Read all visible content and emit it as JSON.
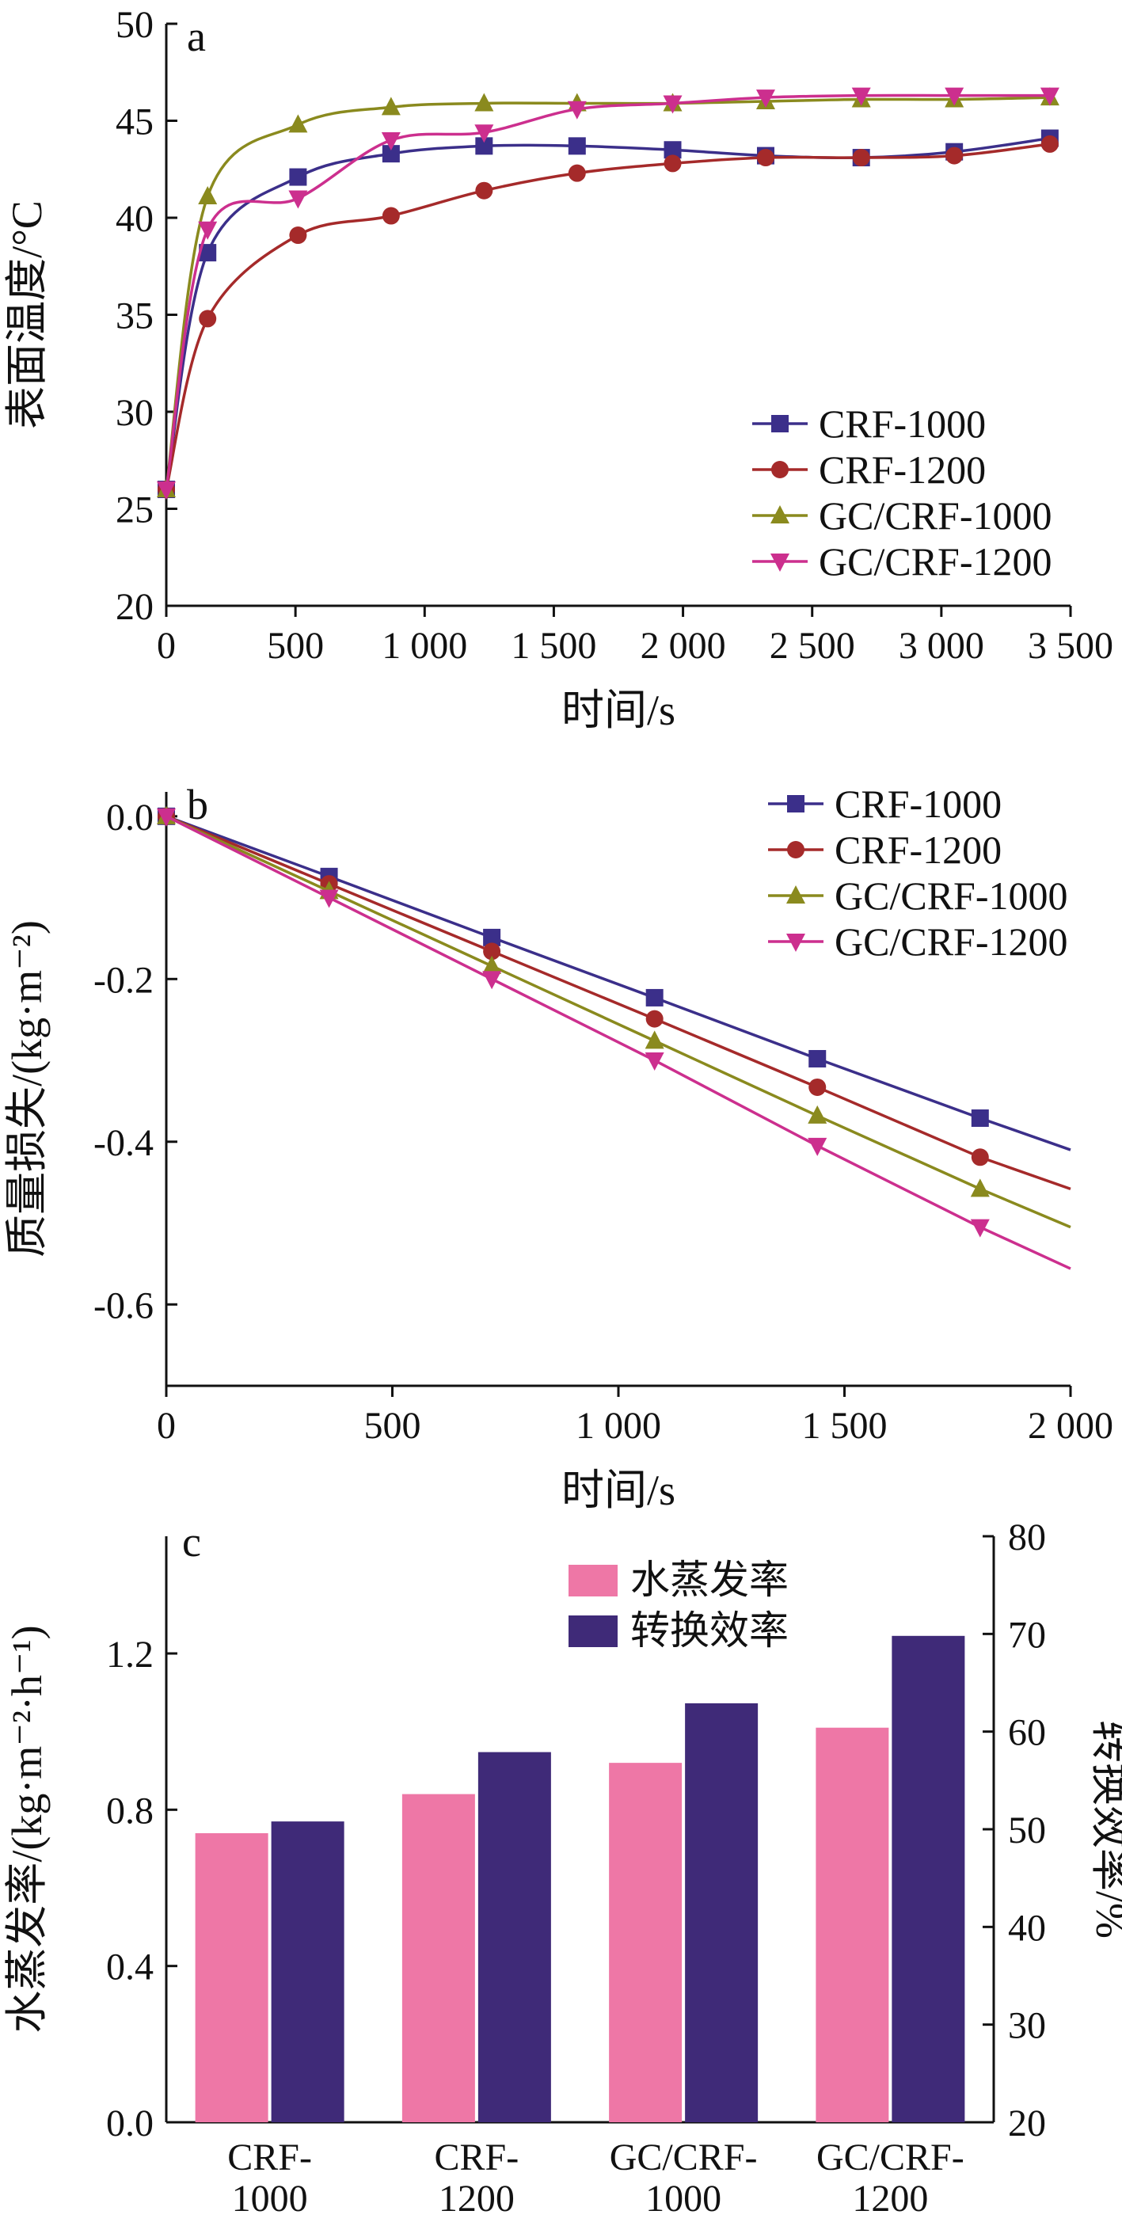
{
  "chart_data": [
    {
      "panel": "a",
      "type": "line",
      "xlabel": "时间/s",
      "ylabel": "表面温度/°C",
      "xlim": [
        0,
        3500
      ],
      "ylim": [
        20,
        50
      ],
      "xticks": [
        0,
        500,
        1000,
        1500,
        2000,
        2500,
        3000,
        3500
      ],
      "xtick_labels": [
        "0",
        "500",
        "1 000",
        "1 500",
        "2 000",
        "2 500",
        "3 000",
        "3 500"
      ],
      "yticks": [
        20,
        25,
        30,
        35,
        40,
        45,
        50
      ],
      "ytick_labels": [
        "20",
        "25",
        "30",
        "35",
        "40",
        "45",
        "50"
      ],
      "legend_position": "bottom-right",
      "series": [
        {
          "name": "CRF-1000",
          "color": "#3b2f8a",
          "marker": "square",
          "x": [
            0,
            160,
            510,
            870,
            1230,
            1590,
            1960,
            2320,
            2690,
            3050,
            3420
          ],
          "y": [
            26.0,
            38.2,
            42.1,
            43.3,
            43.7,
            43.7,
            43.5,
            43.2,
            43.1,
            43.4,
            44.1
          ]
        },
        {
          "name": "CRF-1200",
          "color": "#a52a2a",
          "marker": "circle",
          "x": [
            0,
            160,
            510,
            870,
            1230,
            1590,
            1960,
            2320,
            2690,
            3050,
            3420
          ],
          "y": [
            26.0,
            34.8,
            39.1,
            40.1,
            41.4,
            42.3,
            42.8,
            43.1,
            43.1,
            43.2,
            43.8
          ]
        },
        {
          "name": "GC/CRF-1000",
          "color": "#8a8a1e",
          "marker": "triangle-up",
          "x": [
            0,
            160,
            510,
            870,
            1230,
            1590,
            1960,
            2320,
            2690,
            3050,
            3420
          ],
          "y": [
            26.0,
            41.1,
            44.8,
            45.7,
            45.9,
            45.9,
            45.9,
            46.0,
            46.1,
            46.1,
            46.2
          ]
        },
        {
          "name": "GC/CRF-1200",
          "color": "#cc2f8e",
          "marker": "triangle-down",
          "x": [
            0,
            160,
            510,
            870,
            1230,
            1590,
            1960,
            2320,
            2690,
            3050,
            3420
          ],
          "y": [
            26.0,
            39.4,
            41.0,
            44.0,
            44.4,
            45.6,
            45.9,
            46.2,
            46.3,
            46.3,
            46.3
          ]
        }
      ]
    },
    {
      "panel": "b",
      "type": "line",
      "xlabel": "时间/s",
      "ylabel": "质量损失/(kg·m⁻²)",
      "xlim": [
        0,
        2000
      ],
      "ylim": [
        -0.7,
        0.03
      ],
      "xticks": [
        0,
        500,
        1000,
        1500,
        2000
      ],
      "xtick_labels": [
        "0",
        "500",
        "1 000",
        "1 500",
        "2 000"
      ],
      "yticks": [
        0.0,
        -0.2,
        -0.4,
        -0.6
      ],
      "ytick_labels": [
        "0.0",
        "-0.2",
        "-0.4",
        "-0.6"
      ],
      "legend_position": "top-right",
      "series": [
        {
          "name": "CRF-1000",
          "color": "#3b2f8a",
          "marker": "square",
          "x": [
            0,
            360,
            720,
            1080,
            1440,
            1800,
            2000
          ],
          "y": [
            0.0,
            -0.074,
            -0.149,
            -0.223,
            -0.298,
            -0.371,
            -0.41
          ]
        },
        {
          "name": "CRF-1200",
          "color": "#a52a2a",
          "marker": "circle",
          "x": [
            0,
            360,
            720,
            1080,
            1440,
            1800,
            2000
          ],
          "y": [
            0.0,
            -0.083,
            -0.166,
            -0.249,
            -0.333,
            -0.419,
            -0.458
          ]
        },
        {
          "name": "GC/CRF-1000",
          "color": "#8a8a1e",
          "marker": "triangle-up",
          "x": [
            0,
            360,
            720,
            1080,
            1440,
            1800,
            2000
          ],
          "y": [
            0.0,
            -0.092,
            -0.184,
            -0.276,
            -0.368,
            -0.458,
            -0.505
          ]
        },
        {
          "name": "GC/CRF-1200",
          "color": "#cc2f8e",
          "marker": "triangle-down",
          "x": [
            0,
            360,
            720,
            1080,
            1440,
            1800,
            2000
          ],
          "y": [
            0.0,
            -0.1,
            -0.2,
            -0.3,
            -0.405,
            -0.505,
            -0.556
          ]
        }
      ]
    },
    {
      "panel": "c",
      "type": "bar",
      "ylabel": "水蒸发率/(kg·m⁻²·h⁻¹)",
      "ylabel_right": "转换效率/%",
      "ylim": [
        0,
        1.5
      ],
      "ylim_right": [
        20,
        80
      ],
      "yticks": [
        0.0,
        0.4,
        0.8,
        1.2
      ],
      "ytick_labels": [
        "0.0",
        "0.4",
        "0.8",
        "1.2"
      ],
      "yticks_right": [
        20,
        30,
        40,
        50,
        60,
        70,
        80
      ],
      "ytick_labels_right": [
        "20",
        "30",
        "40",
        "50",
        "60",
        "70",
        "80"
      ],
      "categories": [
        {
          "line1": "CRF-",
          "line2": "1000"
        },
        {
          "line1": "CRF-",
          "line2": "1200"
        },
        {
          "line1": "GC/CRF-",
          "line2": "1000"
        },
        {
          "line1": "GC/CRF-",
          "line2": "1200"
        }
      ],
      "legend_position": "top-center",
      "series": [
        {
          "name": "水蒸发率",
          "axis": "left",
          "color": "#ee77a6",
          "values": [
            0.74,
            0.84,
            0.92,
            1.01
          ]
        },
        {
          "name": "转换效率",
          "axis": "right",
          "color": "#3f2a78",
          "values": [
            50.8,
            57.9,
            62.9,
            69.8
          ]
        }
      ]
    }
  ]
}
